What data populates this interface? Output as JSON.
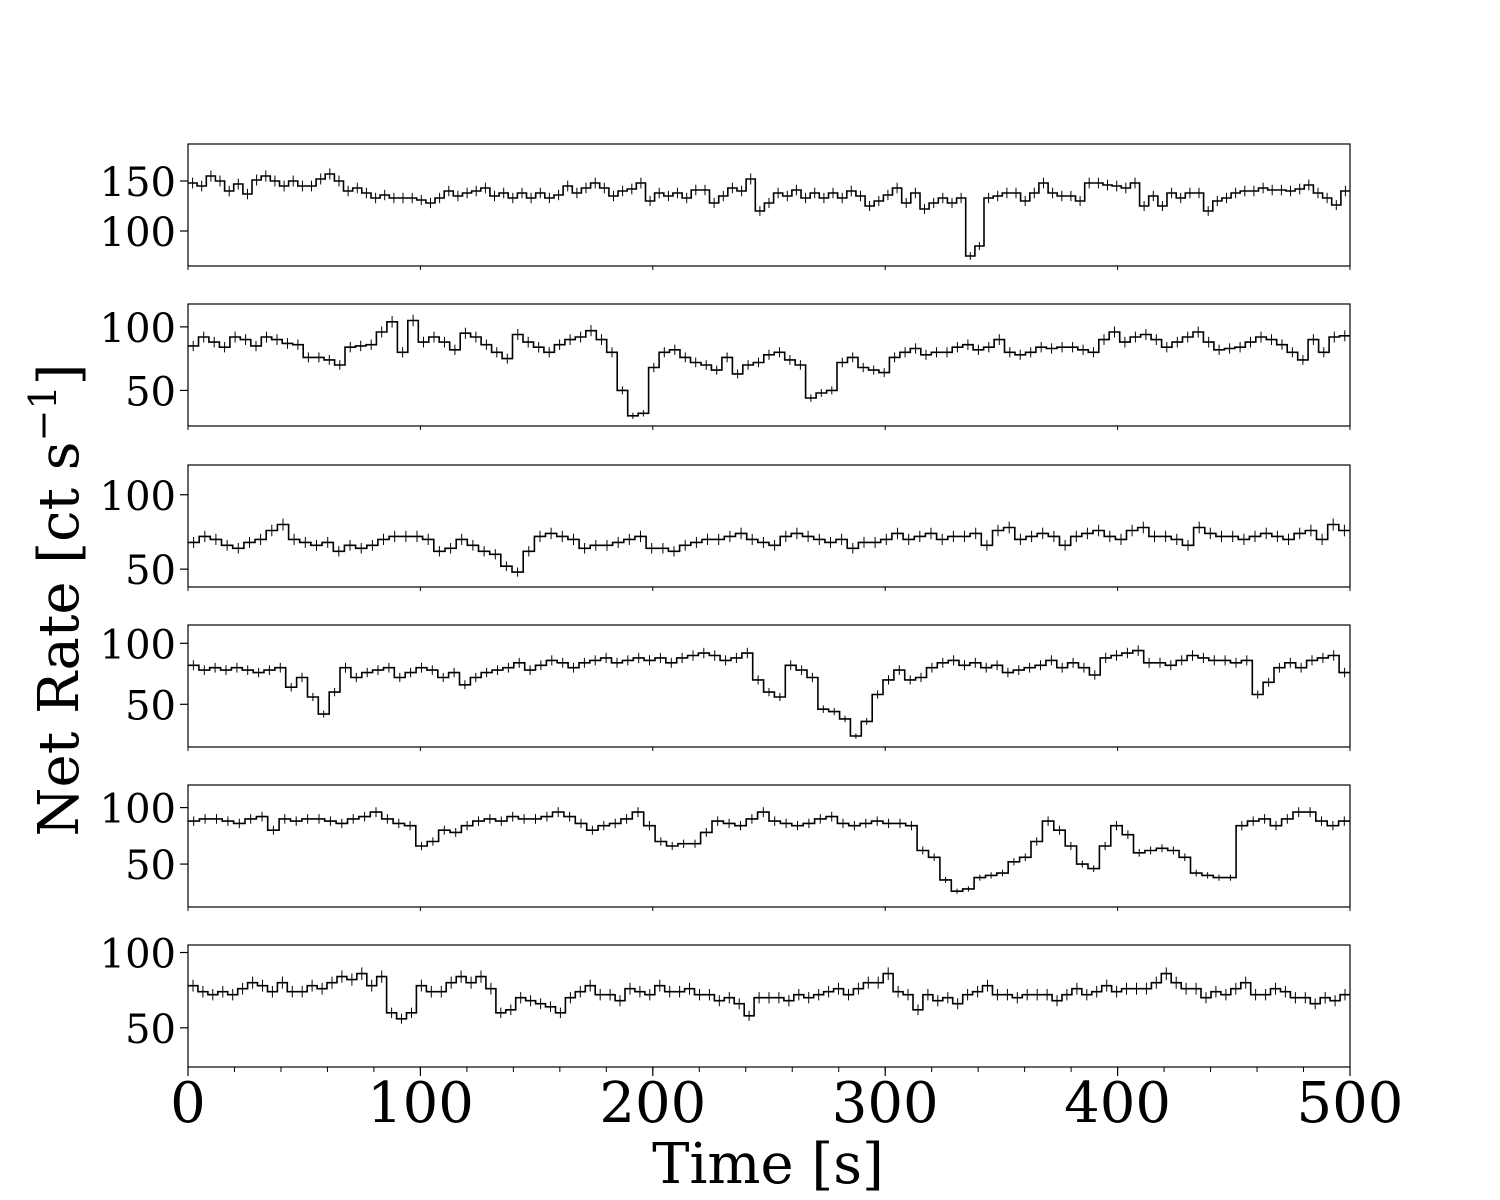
{
  "chart_data": {
    "type": "line",
    "step": true,
    "error_bars": true,
    "xlabel": "Time [s]",
    "ylabel": "Net Rate [ct s",
    "ylabel_sup": "−1",
    "ylabel_close": "]",
    "xlim": [
      0,
      500
    ],
    "xticks": [
      0,
      100,
      200,
      300,
      400,
      500
    ],
    "xtick_labels": [
      "0",
      "100",
      "200",
      "300",
      "400",
      "500"
    ],
    "bin_width_s": 5,
    "line_color": "#000000",
    "panels": [
      {
        "ylim": [
          65,
          187
        ],
        "yticks": [
          100,
          150
        ],
        "ytick_labels": [
          "100",
          "150"
        ],
        "values": [
          148,
          145,
          155,
          150,
          140,
          147,
          137,
          151,
          155,
          150,
          145,
          150,
          145,
          145,
          152,
          157,
          150,
          140,
          143,
          138,
          133,
          136,
          133,
          133,
          133,
          131,
          128,
          133,
          140,
          135,
          138,
          140,
          143,
          135,
          138,
          133,
          138,
          133,
          138,
          133,
          136,
          145,
          138,
          143,
          148,
          143,
          135,
          140,
          142,
          148,
          130,
          138,
          135,
          138,
          133,
          141,
          141,
          128,
          135,
          143,
          140,
          152,
          120,
          128,
          138,
          135,
          141,
          133,
          138,
          133,
          138,
          133,
          140,
          135,
          125,
          130,
          136,
          143,
          128,
          138,
          122,
          128,
          133,
          128,
          133,
          75,
          85,
          133,
          135,
          138,
          138,
          130,
          138,
          148,
          138,
          135,
          135,
          130,
          148,
          148,
          146,
          145,
          143,
          148,
          125,
          135,
          125,
          138,
          133,
          138,
          138,
          120,
          130,
          133,
          138,
          140,
          140,
          143,
          141,
          141,
          140,
          142,
          146,
          138,
          133,
          126,
          140
        ]
      },
      {
        "ylim": [
          22,
          118
        ],
        "yticks": [
          50,
          100
        ],
        "ytick_labels": [
          "50",
          "100"
        ],
        "values": [
          85,
          92,
          88,
          84,
          92,
          90,
          85,
          92,
          90,
          87,
          86,
          76,
          76,
          74,
          70,
          84,
          85,
          86,
          96,
          104,
          80,
          105,
          88,
          92,
          88,
          82,
          95,
          92,
          86,
          80,
          75,
          94,
          88,
          84,
          80,
          86,
          90,
          92,
          97,
          90,
          80,
          50,
          30,
          32,
          68,
          80,
          82,
          76,
          72,
          70,
          66,
          76,
          63,
          70,
          72,
          78,
          80,
          74,
          70,
          44,
          48,
          50,
          72,
          76,
          68,
          66,
          64,
          76,
          80,
          83,
          78,
          80,
          80,
          84,
          86,
          82,
          84,
          90,
          80,
          78,
          80,
          84,
          83,
          84,
          84,
          82,
          80,
          90,
          96,
          88,
          92,
          94,
          90,
          84,
          88,
          92,
          96,
          88,
          82,
          83,
          84,
          88,
          92,
          90,
          86,
          80,
          74,
          90,
          80,
          92,
          93
        ]
      },
      {
        "ylim": [
          38,
          120
        ],
        "yticks": [
          50,
          100
        ],
        "ytick_labels": [
          "50",
          "100"
        ],
        "values": [
          68,
          72,
          70,
          66,
          64,
          68,
          70,
          76,
          80,
          70,
          68,
          66,
          68,
          62,
          66,
          64,
          66,
          70,
          72,
          72,
          72,
          70,
          62,
          64,
          70,
          66,
          62,
          60,
          52,
          48,
          62,
          72,
          74,
          72,
          70,
          64,
          66,
          66,
          68,
          70,
          72,
          64,
          64,
          62,
          66,
          68,
          70,
          70,
          72,
          74,
          70,
          68,
          66,
          72,
          74,
          72,
          70,
          68,
          70,
          64,
          68,
          68,
          70,
          74,
          70,
          72,
          74,
          70,
          72,
          72,
          74,
          66,
          76,
          78,
          70,
          72,
          74,
          72,
          66,
          72,
          74,
          76,
          72,
          70,
          76,
          78,
          72,
          72,
          70,
          66,
          78,
          74,
          72,
          72,
          70,
          72,
          74,
          72,
          70,
          74,
          76,
          70,
          80,
          76
        ]
      },
      {
        "ylim": [
          15,
          115
        ],
        "yticks": [
          50,
          100
        ],
        "ytick_labels": [
          "50",
          "100"
        ],
        "values": [
          82,
          78,
          80,
          78,
          80,
          78,
          76,
          78,
          80,
          64,
          72,
          56,
          42,
          60,
          80,
          72,
          76,
          78,
          80,
          72,
          76,
          80,
          78,
          72,
          76,
          66,
          72,
          76,
          78,
          80,
          84,
          78,
          82,
          86,
          84,
          80,
          84,
          86,
          88,
          84,
          86,
          88,
          86,
          88,
          84,
          88,
          90,
          92,
          90,
          86,
          88,
          92,
          70,
          60,
          56,
          82,
          78,
          72,
          46,
          44,
          38,
          24,
          36,
          58,
          70,
          78,
          70,
          72,
          80,
          84,
          86,
          82,
          84,
          80,
          82,
          76,
          78,
          80,
          82,
          86,
          80,
          84,
          80,
          74,
          88,
          90,
          92,
          94,
          84,
          84,
          82,
          86,
          90,
          88,
          86,
          86,
          84,
          86,
          58,
          68,
          80,
          84,
          80,
          86,
          88,
          90,
          76
        ]
      },
      {
        "ylim": [
          12,
          120
        ],
        "yticks": [
          50,
          100
        ],
        "ytick_labels": [
          "50",
          "100"
        ],
        "values": [
          88,
          90,
          90,
          88,
          86,
          90,
          92,
          80,
          90,
          88,
          90,
          90,
          88,
          86,
          90,
          92,
          96,
          90,
          86,
          84,
          66,
          70,
          80,
          78,
          84,
          88,
          90,
          88,
          92,
          90,
          90,
          92,
          96,
          92,
          86,
          80,
          84,
          86,
          90,
          96,
          84,
          70,
          66,
          68,
          68,
          78,
          88,
          86,
          84,
          90,
          96,
          88,
          86,
          84,
          86,
          90,
          92,
          86,
          84,
          86,
          88,
          86,
          86,
          84,
          62,
          56,
          36,
          26,
          28,
          38,
          40,
          42,
          52,
          56,
          70,
          88,
          80,
          66,
          50,
          46,
          66,
          84,
          76,
          60,
          62,
          64,
          62,
          56,
          42,
          40,
          38,
          38,
          84,
          88,
          90,
          84,
          90,
          96,
          96,
          88,
          84,
          88
        ]
      },
      {
        "ylim": [
          24,
          105
        ],
        "yticks": [
          50,
          100
        ],
        "ytick_labels": [
          "50",
          "100"
        ],
        "values": [
          78,
          74,
          72,
          74,
          72,
          76,
          80,
          78,
          74,
          80,
          74,
          74,
          78,
          76,
          80,
          84,
          82,
          86,
          78,
          84,
          60,
          56,
          60,
          78,
          74,
          74,
          80,
          84,
          80,
          84,
          76,
          60,
          62,
          70,
          68,
          66,
          64,
          60,
          70,
          74,
          78,
          72,
          72,
          68,
          76,
          74,
          72,
          78,
          74,
          74,
          76,
          72,
          72,
          68,
          70,
          66,
          58,
          70,
          70,
          70,
          68,
          72,
          70,
          72,
          74,
          76,
          72,
          76,
          80,
          80,
          86,
          74,
          72,
          62,
          72,
          68,
          70,
          66,
          72,
          74,
          78,
          72,
          72,
          70,
          72,
          72,
          72,
          68,
          72,
          76,
          72,
          74,
          78,
          74,
          76,
          76,
          76,
          80,
          86,
          80,
          76,
          76,
          70,
          74,
          72,
          76,
          80,
          72,
          72,
          76,
          74,
          70,
          70,
          66,
          70,
          68,
          72
        ]
      }
    ]
  }
}
